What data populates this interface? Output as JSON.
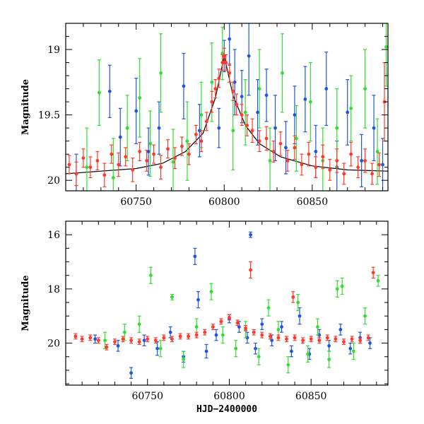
{
  "colors": {
    "blue": "#1f55e0",
    "green": "#33dd33",
    "red": "#ff3a2a",
    "model": "#000000"
  },
  "chart_data": [
    {
      "type": "scatter",
      "title": "",
      "xlabel": "",
      "ylabel": "Magnitude",
      "xlim": [
        60710,
        60893
      ],
      "ylim": [
        20.08,
        18.8
      ],
      "y_inverted": true,
      "xticks": [
        60750,
        60800,
        60850
      ],
      "yticks": [
        19,
        19.5,
        20
      ],
      "yticklabels": [
        "19",
        "19.5",
        "20"
      ],
      "grid": false,
      "model_curve": {
        "x": [
          60710,
          60730,
          60750,
          60765,
          60778,
          60788,
          60795,
          60800,
          60805,
          60812,
          60820,
          60832,
          60850,
          60870,
          60893
        ],
        "y": [
          19.95,
          19.93,
          19.91,
          19.87,
          19.78,
          19.64,
          19.37,
          19.05,
          19.35,
          19.58,
          19.72,
          19.82,
          19.89,
          19.92,
          19.93
        ]
      },
      "series": [
        {
          "color": "blue",
          "points": [
            [
              60716,
              19.95,
              0.15
            ],
            [
              60735,
              19.32,
              0.2
            ],
            [
              60741,
              19.67,
              0.22
            ],
            [
              60750,
              19.47,
              0.25
            ],
            [
              60757,
              19.78,
              0.18
            ],
            [
              60763,
              19.6,
              0.2
            ],
            [
              60777,
              19.28,
              0.25
            ],
            [
              60786,
              19.62,
              0.2
            ],
            [
              60797,
              19.6,
              0.15
            ],
            [
              60800,
              19.05,
              0.12
            ],
            [
              60803,
              18.92,
              0.2
            ],
            [
              60806,
              19.25,
              0.25
            ],
            [
              60810,
              19.36,
              0.2
            ],
            [
              60814,
              19.05,
              0.3
            ],
            [
              60819,
              19.48,
              0.25
            ],
            [
              60824,
              19.35,
              0.2
            ],
            [
              60829,
              19.6,
              0.25
            ],
            [
              60835,
              19.75,
              0.2
            ],
            [
              60840,
              19.5,
              0.22
            ],
            [
              60846,
              19.38,
              0.25
            ],
            [
              60852,
              19.78,
              0.2
            ],
            [
              60858,
              19.3,
              0.28
            ],
            [
              60864,
              19.9,
              0.2
            ],
            [
              60870,
              19.48,
              0.25
            ],
            [
              60878,
              19.85,
              0.2
            ],
            [
              60885,
              19.6,
              0.25
            ],
            [
              60890,
              19.88,
              0.2
            ]
          ]
        },
        {
          "color": "green",
          "points": [
            [
              60722,
              19.9,
              0.3
            ],
            [
              60729,
              19.33,
              0.25
            ],
            [
              60737,
              19.98,
              0.3
            ],
            [
              60745,
              19.6,
              0.25
            ],
            [
              60752,
              19.37,
              0.3
            ],
            [
              60758,
              19.72,
              0.25
            ],
            [
              60764,
              19.18,
              0.3
            ],
            [
              60771,
              19.86,
              0.25
            ],
            [
              60779,
              19.7,
              0.3
            ],
            [
              60787,
              19.5,
              0.25
            ],
            [
              60793,
              19.25,
              0.3
            ],
            [
              60799,
              19.03,
              0.2
            ],
            [
              60805,
              19.62,
              0.3
            ],
            [
              60812,
              19.48,
              0.25
            ],
            [
              60820,
              19.3,
              0.3
            ],
            [
              60826,
              19.85,
              0.25
            ],
            [
              60833,
              19.18,
              0.3
            ],
            [
              60841,
              19.68,
              0.25
            ],
            [
              60849,
              19.4,
              0.3
            ],
            [
              60856,
              19.85,
              0.25
            ],
            [
              60864,
              19.6,
              0.3
            ],
            [
              60872,
              19.45,
              0.25
            ],
            [
              60880,
              19.3,
              0.3
            ],
            [
              60887,
              19.78,
              0.25
            ],
            [
              60892,
              18.98,
              0.3
            ]
          ]
        },
        {
          "color": "red",
          "points": [
            [
              60712,
              19.88,
              0.07
            ],
            [
              60716,
              19.95,
              0.09
            ],
            [
              60720,
              19.83,
              0.07
            ],
            [
              60724,
              19.9,
              0.08
            ],
            [
              60728,
              19.85,
              0.07
            ],
            [
              60732,
              19.96,
              0.09
            ],
            [
              60736,
              19.8,
              0.07
            ],
            [
              60740,
              19.88,
              0.09
            ],
            [
              60744,
              19.82,
              0.07
            ],
            [
              60748,
              19.92,
              0.09
            ],
            [
              60752,
              19.78,
              0.07
            ],
            [
              60756,
              19.85,
              0.08
            ],
            [
              60760,
              19.8,
              0.07
            ],
            [
              60764,
              19.9,
              0.09
            ],
            [
              60768,
              19.76,
              0.07
            ],
            [
              60772,
              19.83,
              0.08
            ],
            [
              60776,
              19.74,
              0.07
            ],
            [
              60780,
              19.8,
              0.08
            ],
            [
              60784,
              19.65,
              0.07
            ],
            [
              60787,
              19.7,
              0.08
            ],
            [
              60790,
              19.55,
              0.07
            ],
            [
              60793,
              19.4,
              0.08
            ],
            [
              60795,
              19.3,
              0.07
            ],
            [
              60797,
              19.22,
              0.07
            ],
            [
              60799,
              19.1,
              0.06
            ],
            [
              60800,
              19.05,
              0.06
            ],
            [
              60801,
              19.1,
              0.06
            ],
            [
              60803,
              19.18,
              0.07
            ],
            [
              60805,
              19.32,
              0.07
            ],
            [
              60807,
              19.42,
              0.08
            ],
            [
              60810,
              19.5,
              0.08
            ],
            [
              60813,
              19.58,
              0.08
            ],
            [
              60816,
              19.62,
              0.09
            ],
            [
              60820,
              19.7,
              0.08
            ],
            [
              60824,
              19.68,
              0.09
            ],
            [
              60828,
              19.78,
              0.08
            ],
            [
              60832,
              19.72,
              0.09
            ],
            [
              60836,
              19.85,
              0.08
            ],
            [
              60840,
              19.75,
              0.09
            ],
            [
              60844,
              19.88,
              0.08
            ],
            [
              60848,
              19.8,
              0.09
            ],
            [
              60852,
              19.9,
              0.08
            ],
            [
              60856,
              19.82,
              0.09
            ],
            [
              60860,
              19.92,
              0.08
            ],
            [
              60864,
              19.85,
              0.09
            ],
            [
              60868,
              19.95,
              0.08
            ],
            [
              60872,
              19.8,
              0.09
            ],
            [
              60876,
              19.9,
              0.08
            ],
            [
              60880,
              19.85,
              0.09
            ],
            [
              60884,
              19.95,
              0.08
            ],
            [
              60888,
              19.88,
              0.09
            ],
            [
              60891,
              19.4,
              0.3
            ]
          ]
        }
      ]
    },
    {
      "type": "scatter",
      "title": "",
      "xlabel": "HJD−2400000",
      "ylabel": "Magnitude",
      "xlim": [
        60700,
        60897
      ],
      "ylim": [
        21.55,
        15.5
      ],
      "y_inverted": true,
      "xticks": [
        60750,
        60800,
        60850
      ],
      "yticks": [
        16,
        18,
        20
      ],
      "yticklabels": [
        "16",
        "18",
        "20"
      ],
      "grid": false,
      "series": [
        {
          "color": "blue",
          "points": [
            [
              60718,
              19.85,
              0.15
            ],
            [
              60732,
              20.1,
              0.2
            ],
            [
              60740,
              21.1,
              0.2
            ],
            [
              60748,
              19.9,
              0.2
            ],
            [
              60756,
              20.2,
              0.25
            ],
            [
              60764,
              19.6,
              0.2
            ],
            [
              60772,
              20.5,
              0.2
            ],
            [
              60779,
              16.8,
              0.3
            ],
            [
              60781,
              18.4,
              0.3
            ],
            [
              60786,
              20.3,
              0.25
            ],
            [
              60792,
              19.7,
              0.2
            ],
            [
              60800,
              19.1,
              0.15
            ],
            [
              60806,
              19.4,
              0.2
            ],
            [
              60811,
              19.8,
              0.2
            ],
            [
              60813,
              16.0,
              0.1
            ],
            [
              60816,
              20.2,
              0.2
            ],
            [
              60820,
              19.3,
              0.2
            ],
            [
              60826,
              19.9,
              0.2
            ],
            [
              60832,
              19.4,
              0.2
            ],
            [
              60838,
              20.3,
              0.2
            ],
            [
              60843,
              19.0,
              0.3
            ],
            [
              60849,
              20.4,
              0.2
            ],
            [
              60855,
              19.7,
              0.2
            ],
            [
              60861,
              20.1,
              0.2
            ],
            [
              60868,
              19.5,
              0.2
            ],
            [
              60874,
              20.2,
              0.2
            ],
            [
              60880,
              19.8,
              0.2
            ],
            [
              60886,
              20.0,
              0.2
            ]
          ]
        },
        {
          "color": "green",
          "points": [
            [
              60724,
              19.9,
              0.3
            ],
            [
              60736,
              19.6,
              0.3
            ],
            [
              60745,
              19.3,
              0.3
            ],
            [
              60752,
              17.5,
              0.3
            ],
            [
              60758,
              20.2,
              0.3
            ],
            [
              60765,
              18.3,
              0.1
            ],
            [
              60772,
              20.6,
              0.3
            ],
            [
              60780,
              19.4,
              0.3
            ],
            [
              60789,
              18.1,
              0.3
            ],
            [
              60796,
              19.7,
              0.3
            ],
            [
              60804,
              20.2,
              0.3
            ],
            [
              60810,
              19.5,
              0.3
            ],
            [
              60818,
              20.5,
              0.3
            ],
            [
              60824,
              18.7,
              0.3
            ],
            [
              60830,
              19.5,
              0.3
            ],
            [
              60836,
              20.8,
              0.3
            ],
            [
              60842,
              18.5,
              0.3
            ],
            [
              60848,
              20.4,
              0.3
            ],
            [
              60854,
              19.4,
              0.3
            ],
            [
              60861,
              20.6,
              0.3
            ],
            [
              60866,
              18.0,
              0.3
            ],
            [
              60869,
              17.9,
              0.3
            ],
            [
              60876,
              20.3,
              0.3
            ],
            [
              60883,
              19.0,
              0.3
            ],
            [
              60891,
              17.7,
              0.2
            ]
          ]
        },
        {
          "color": "red",
          "points": [
            [
              60706,
              19.75,
              0.1
            ],
            [
              60710,
              19.85,
              0.1
            ],
            [
              60715,
              19.8,
              0.1
            ],
            [
              60720,
              19.9,
              0.1
            ],
            [
              60725,
              20.15,
              0.1
            ],
            [
              60730,
              19.95,
              0.1
            ],
            [
              60735,
              19.85,
              0.1
            ],
            [
              60740,
              19.9,
              0.1
            ],
            [
              60745,
              19.95,
              0.1
            ],
            [
              60750,
              19.85,
              0.1
            ],
            [
              60755,
              19.9,
              0.1
            ],
            [
              60760,
              19.8,
              0.1
            ],
            [
              60765,
              19.85,
              0.1
            ],
            [
              60770,
              19.75,
              0.1
            ],
            [
              60775,
              19.75,
              0.1
            ],
            [
              60780,
              19.7,
              0.1
            ],
            [
              60785,
              19.6,
              0.1
            ],
            [
              60790,
              19.4,
              0.1
            ],
            [
              60795,
              19.2,
              0.1
            ],
            [
              60800,
              19.05,
              0.1
            ],
            [
              60805,
              19.25,
              0.1
            ],
            [
              60810,
              19.45,
              0.1
            ],
            [
              60813,
              17.3,
              0.3
            ],
            [
              60815,
              19.6,
              0.1
            ],
            [
              60820,
              19.7,
              0.1
            ],
            [
              60825,
              19.75,
              0.1
            ],
            [
              60830,
              19.8,
              0.1
            ],
            [
              60835,
              19.85,
              0.1
            ],
            [
              60839,
              18.3,
              0.2
            ],
            [
              60840,
              19.8,
              0.1
            ],
            [
              60845,
              19.9,
              0.1
            ],
            [
              60850,
              19.85,
              0.1
            ],
            [
              60855,
              19.9,
              0.1
            ],
            [
              60860,
              19.8,
              0.1
            ],
            [
              60865,
              19.85,
              0.1
            ],
            [
              60870,
              19.95,
              0.1
            ],
            [
              60875,
              19.85,
              0.1
            ],
            [
              60880,
              19.9,
              0.1
            ],
            [
              60885,
              19.8,
              0.1
            ],
            [
              60888,
              17.4,
              0.2
            ]
          ]
        }
      ]
    }
  ]
}
